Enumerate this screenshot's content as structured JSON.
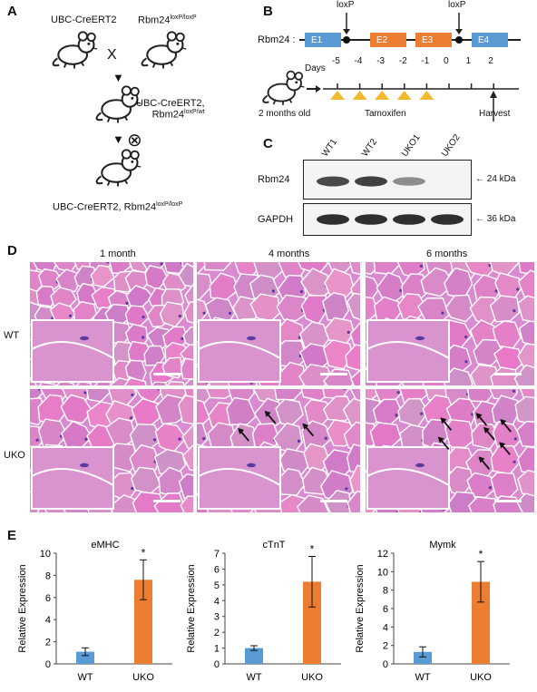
{
  "panels": {
    "A": {
      "letter": "A",
      "parent1": "UBC-CreERT2",
      "parent2_base": "Rbm24",
      "parent2_sup": "loxP/loxP",
      "cross": "X",
      "f1_line1": "UBC-CreERT2,",
      "f1_line2_base": "Rbm24",
      "f1_line2_sup": "loxP/wt",
      "self_cross": "⊗",
      "f2_base": "UBC-CreERT2, Rbm24",
      "f2_sup": "loxP/loxP"
    },
    "B": {
      "letter": "B",
      "gene": "Rbm24 :",
      "loxp_left": "loxP",
      "loxp_right": "loxP",
      "exons": [
        "E1",
        "E2",
        "E3",
        "E4"
      ],
      "days_label": "Days",
      "days": [
        "-5",
        "-4",
        "-3",
        "-2",
        "-1",
        "0",
        "1",
        "2"
      ],
      "age": "2 months old",
      "treatment": "Tamoxifen",
      "harvest": "Harvest",
      "colors": {
        "exon_blue": "#5b9bd5",
        "exon_orange": "#ed7d31",
        "triangle": "#f2b92c"
      }
    },
    "C": {
      "letter": "C",
      "lanes": [
        "WT1",
        "WT2",
        "UKO1",
        "UKO2"
      ],
      "rows": [
        {
          "protein": "Rbm24",
          "size": "24 kDa",
          "intensity": [
            0.75,
            0.8,
            0.35,
            0.0
          ]
        },
        {
          "protein": "GAPDH",
          "size": "36 kDa",
          "intensity": [
            0.9,
            0.9,
            0.9,
            0.9
          ]
        }
      ]
    },
    "D": {
      "letter": "D",
      "columns": [
        "1 month",
        "4 months",
        "6 months"
      ],
      "rows": [
        "WT",
        "UKO"
      ],
      "colors": {
        "fiber": "#d98ad0",
        "membrane": "#ffffff",
        "nuclei": "#5a3aa0"
      }
    },
    "E": {
      "letter": "E",
      "ylabel": "Relative Expression",
      "colors": {
        "WT": "#5b9bd5",
        "UKO": "#ed7d31"
      }
    }
  },
  "chart_data": [
    {
      "type": "bar",
      "title": "eMHC",
      "categories": [
        "WT",
        "UKO"
      ],
      "values": [
        1.1,
        7.6
      ],
      "errors": [
        0.35,
        1.8
      ],
      "significance": [
        "",
        "*"
      ],
      "ylabel": "Relative Expression",
      "ylim": [
        0,
        10
      ],
      "yticks": [
        "0",
        "2",
        "4",
        "6",
        "8",
        "10"
      ]
    },
    {
      "type": "bar",
      "title": "cTnT",
      "categories": [
        "WT",
        "UKO"
      ],
      "values": [
        1.0,
        5.2
      ],
      "errors": [
        0.15,
        1.6
      ],
      "significance": [
        "",
        "*"
      ],
      "ylabel": "Relative Expression",
      "ylim": [
        0,
        7
      ],
      "yticks": [
        "0",
        "1",
        "2",
        "3",
        "4",
        "5",
        "6",
        "7"
      ]
    },
    {
      "type": "bar",
      "title": "Mymk",
      "categories": [
        "WT",
        "UKO"
      ],
      "values": [
        1.3,
        8.9
      ],
      "errors": [
        0.55,
        2.2
      ],
      "significance": [
        "",
        "*"
      ],
      "ylabel": "Relative Expression",
      "ylim": [
        0,
        12
      ],
      "yticks": [
        "0",
        "2",
        "4",
        "6",
        "8",
        "10",
        "12"
      ]
    }
  ]
}
